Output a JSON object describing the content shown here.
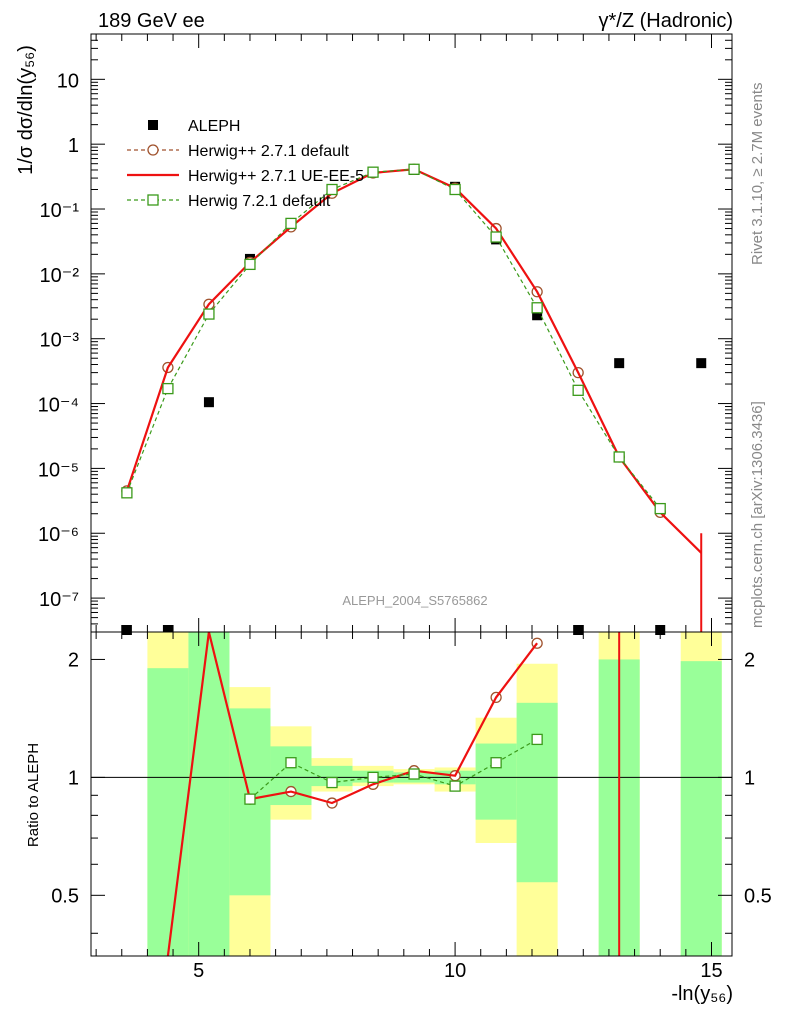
{
  "header": {
    "left_label": "189 GeV ee",
    "right_label": "γ*/Z (Hadronic)"
  },
  "side_labels": {
    "rivet": "Rivet 3.1.10, ≥ 2.7M events",
    "mcplots": "mcplots.cern.ch [arXiv:1306.3436]"
  },
  "watermark": "ALEPH_2004_S5765862",
  "colors": {
    "data": "#000000",
    "herwigpp_default": "#a0522d",
    "herwigpp_ue": "#ee1111",
    "herwig7": "#3a9a1a",
    "band_inner": "#99ff99",
    "band_outer": "#ffff99"
  },
  "chart_data": [
    {
      "type": "line",
      "title": "",
      "xlabel": "",
      "ylabel": "1/σ  dσ/dln(y₅₆)",
      "yscale": "log",
      "xlim": [
        2.9,
        15.4
      ],
      "ylim": [
        3e-08,
        50
      ],
      "legend_placement": "top-left",
      "y_tick_labels": [
        "10⁻⁷",
        "10⁻⁶",
        "10⁻⁵",
        "10⁻⁴",
        "10⁻³",
        "10⁻²",
        "10⁻¹",
        "1",
        "10"
      ],
      "series": [
        {
          "name": "ALEPH",
          "style": "markers",
          "x": [
            3.6,
            4.4,
            5.2,
            6.0,
            6.8,
            7.6,
            8.4,
            9.2,
            10.0,
            10.8,
            11.6,
            12.4,
            13.2,
            14.0,
            14.8
          ],
          "y": [
            3e-08,
            3e-08,
            0.000105,
            0.017,
            0.058,
            0.2,
            0.37,
            0.4,
            0.22,
            0.034,
            0.0023,
            3e-08,
            0.00042,
            3e-08,
            0.00042
          ]
        },
        {
          "name": "Herwig++ 2.7.1 default",
          "style": "dashed-circles",
          "x": [
            3.6,
            4.4,
            5.2,
            6.0,
            6.8,
            7.6,
            8.4,
            9.2,
            10.0,
            10.8,
            11.6,
            12.4,
            13.2,
            14.0
          ],
          "y": [
            4.5e-06,
            0.00036,
            0.0034,
            0.015,
            0.053,
            0.175,
            0.36,
            0.41,
            0.21,
            0.05,
            0.0053,
            0.0003,
            1.5e-05,
            2.1e-06
          ]
        },
        {
          "name": "Herwig++ 2.7.1 UE-EE-5",
          "style": "solid",
          "x": [
            3.6,
            4.4,
            5.2,
            6.0,
            6.8,
            7.6,
            8.4,
            9.2,
            10.0,
            10.8,
            11.6,
            12.4,
            13.2,
            14.0,
            14.8
          ],
          "y": [
            4.5e-06,
            0.00036,
            0.0034,
            0.015,
            0.053,
            0.175,
            0.36,
            0.41,
            0.21,
            0.05,
            0.0053,
            0.0003,
            1.5e-05,
            2.1e-06,
            5e-07
          ]
        },
        {
          "name": "Herwig 7.2.1 default",
          "style": "dashed-squares",
          "x": [
            3.6,
            4.4,
            5.2,
            6.0,
            6.8,
            7.6,
            8.4,
            9.2,
            10.0,
            10.8,
            11.6,
            12.4,
            13.2,
            14.0
          ],
          "y": [
            4.2e-06,
            0.00017,
            0.0024,
            0.014,
            0.06,
            0.2,
            0.37,
            0.41,
            0.2,
            0.037,
            0.003,
            0.00016,
            1.5e-05,
            2.4e-06
          ]
        }
      ]
    },
    {
      "type": "line",
      "title": "",
      "xlabel": "-ln(y₅₆)",
      "ylabel": "Ratio to ALEPH",
      "yscale": "log",
      "xlim": [
        2.9,
        15.4
      ],
      "ylim": [
        0.35,
        2.35
      ],
      "x_tick_labels": [
        "5",
        "10",
        "15"
      ],
      "y_tick_labels": [
        "0.5",
        "1",
        "2"
      ],
      "bands": [
        {
          "x0": 4.0,
          "x1": 4.8,
          "inner": [
            0.35,
            1.9
          ],
          "outer": [
            0.35,
            2.35
          ]
        },
        {
          "x0": 4.8,
          "x1": 5.6,
          "inner": [
            0.35,
            2.35
          ],
          "outer": [
            0.35,
            2.35
          ]
        },
        {
          "x0": 5.6,
          "x1": 6.4,
          "inner": [
            0.5,
            1.5
          ],
          "outer": [
            0.35,
            1.7
          ]
        },
        {
          "x0": 6.4,
          "x1": 7.2,
          "inner": [
            0.85,
            1.2
          ],
          "outer": [
            0.78,
            1.35
          ]
        },
        {
          "x0": 7.2,
          "x1": 8.0,
          "inner": [
            0.95,
            1.07
          ],
          "outer": [
            0.92,
            1.12
          ]
        },
        {
          "x0": 8.0,
          "x1": 8.8,
          "inner": [
            0.97,
            1.04
          ],
          "outer": [
            0.95,
            1.07
          ]
        },
        {
          "x0": 8.8,
          "x1": 9.6,
          "inner": [
            0.97,
            1.03
          ],
          "outer": [
            0.96,
            1.05
          ]
        },
        {
          "x0": 9.6,
          "x1": 10.4,
          "inner": [
            0.96,
            1.04
          ],
          "outer": [
            0.92,
            1.06
          ]
        },
        {
          "x0": 10.4,
          "x1": 11.2,
          "inner": [
            0.78,
            1.22
          ],
          "outer": [
            0.68,
            1.42
          ]
        },
        {
          "x0": 11.2,
          "x1": 12.0,
          "inner": [
            0.54,
            1.55
          ],
          "outer": [
            0.35,
            1.95
          ]
        },
        {
          "x0": 12.8,
          "x1": 13.6,
          "inner": [
            0.35,
            2.0
          ],
          "outer": [
            0.35,
            2.35
          ]
        },
        {
          "x0": 14.4,
          "x1": 15.2,
          "inner": [
            0.35,
            1.98
          ],
          "outer": [
            0.35,
            2.35
          ]
        }
      ],
      "reference_line": 1,
      "series": [
        {
          "name": "Herwig++ 2.7.1 default",
          "style": "dashed-circles",
          "x": [
            6.0,
            6.8,
            7.6,
            8.4,
            9.2,
            10.0,
            10.8,
            11.6
          ],
          "y": [
            0.88,
            0.92,
            0.86,
            0.96,
            1.04,
            1.01,
            1.6,
            2.2
          ]
        },
        {
          "name": "Herwig++ 2.7.1 UE-EE-5",
          "style": "solid",
          "x": [
            4.4,
            5.2,
            6.0,
            6.8,
            7.6,
            8.4,
            9.2,
            10.0,
            10.8,
            11.6
          ],
          "y": [
            0.35,
            2.35,
            0.88,
            0.92,
            0.86,
            0.96,
            1.04,
            1.01,
            1.6,
            2.2
          ]
        },
        {
          "name": "Herwig 7.2.1 default",
          "style": "dashed-squares",
          "x": [
            6.0,
            6.8,
            7.6,
            8.4,
            9.2,
            10.0,
            10.8,
            11.6
          ],
          "y": [
            0.88,
            1.09,
            0.97,
            1.0,
            1.02,
            0.95,
            1.09,
            1.25
          ]
        }
      ]
    }
  ]
}
